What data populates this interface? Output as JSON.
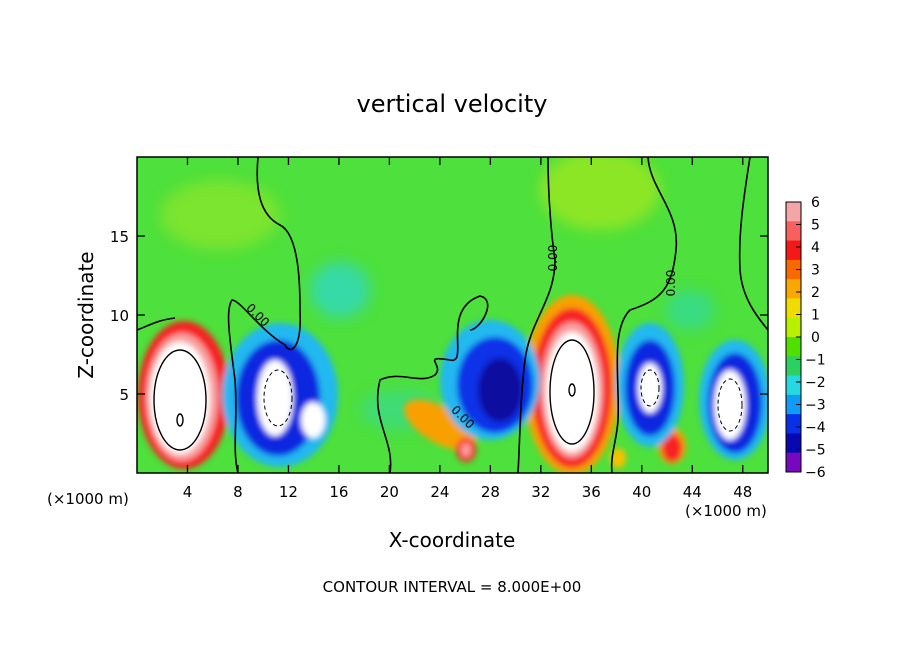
{
  "chart_data": {
    "type": "heatmap",
    "title": "vertical velocity",
    "xlabel": "X-coordinate",
    "ylabel": "Z-coordinate",
    "x_unit_left": "(×1000 m)",
    "x_unit_right": "(×1000 m)",
    "footer": "CONTOUR INTERVAL = 8.000E+00",
    "xlim": [
      0,
      50
    ],
    "ylim": [
      0,
      20
    ],
    "x_ticks": [
      4,
      8,
      12,
      16,
      20,
      24,
      28,
      32,
      36,
      40,
      44,
      48
    ],
    "y_ticks": [
      5,
      10,
      15
    ],
    "colorbar_ticks": [
      6,
      5,
      4,
      3,
      2,
      1,
      0,
      -1,
      -2,
      -3,
      -4,
      -5,
      -6
    ],
    "colorbar_colors": [
      "#f4a6a6",
      "#f86060",
      "#f41818",
      "#f86a00",
      "#f8a800",
      "#f0dc00",
      "#b8f000",
      "#50e000",
      "#2ad060",
      "#28d8e0",
      "#109cf4",
      "#0830e8",
      "#0808b0",
      "#7808c0"
    ],
    "contour_labels": [
      "0.00",
      "0.00",
      "0.00",
      "0.00"
    ],
    "background_color": "#4ee03c"
  }
}
